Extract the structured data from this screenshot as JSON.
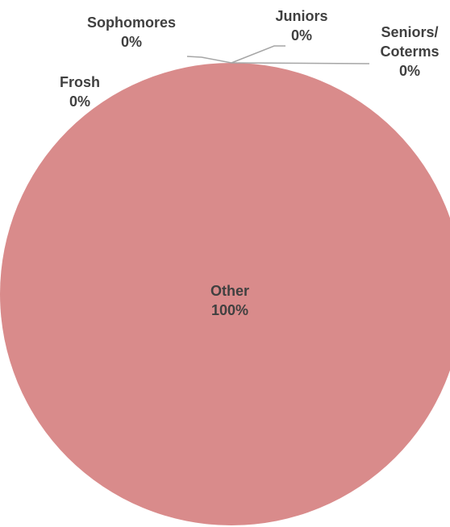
{
  "chart_data": {
    "type": "pie",
    "title": "",
    "categories": [
      "Frosh",
      "Sophomores",
      "Juniors",
      "Seniors/ Coterms",
      "Other"
    ],
    "values": [
      0,
      0,
      0,
      0,
      100
    ],
    "labels": [
      {
        "name": "Frosh",
        "pct": "0%"
      },
      {
        "name": "Sophomores",
        "pct": "0%"
      },
      {
        "name": "Juniors",
        "pct": "0%"
      },
      {
        "name": "Seniors/",
        "name2": "Coterms",
        "pct": "0%"
      },
      {
        "name": "Other",
        "pct": "100%"
      }
    ],
    "colors": {
      "Other": "#d98b8b",
      "leader_line": "#a6a6a6"
    },
    "legend": "none"
  }
}
